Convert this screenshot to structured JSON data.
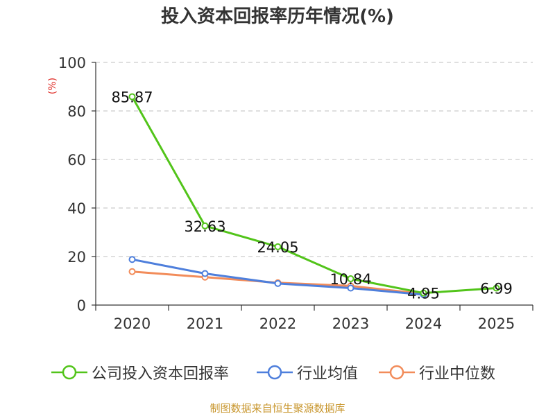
{
  "chart_data": {
    "type": "line",
    "title": "投入资本回报率历年情况(%)",
    "ylabel": "(%)",
    "xlabel": "",
    "categories": [
      "2020",
      "2021",
      "2022",
      "2023",
      "2024",
      "2025"
    ],
    "ylim": [
      0,
      100
    ],
    "yticks": [
      0,
      20,
      40,
      60,
      80,
      100
    ],
    "grid": true,
    "legend": "bottom",
    "series": [
      {
        "name": "公司投入资本回报率",
        "color": "#52c41a",
        "values": [
          85.87,
          32.63,
          24.05,
          10.84,
          4.95,
          6.99
        ],
        "labels": [
          "85.87",
          "32.63",
          "24.05",
          "10.84",
          "4.95",
          "6.99"
        ]
      },
      {
        "name": "行业均值",
        "color": "#4e7fdc",
        "values": [
          18.8,
          13.0,
          8.9,
          7.0,
          4.3,
          null
        ]
      },
      {
        "name": "行业中位数",
        "color": "#f28c5a",
        "values": [
          13.8,
          11.5,
          9.2,
          7.9,
          4.6,
          null
        ]
      }
    ]
  },
  "source": {
    "text": "制图数据来自恒生聚源数据库",
    "color": "#c8962d"
  },
  "ylabel_color": "#e0302a"
}
